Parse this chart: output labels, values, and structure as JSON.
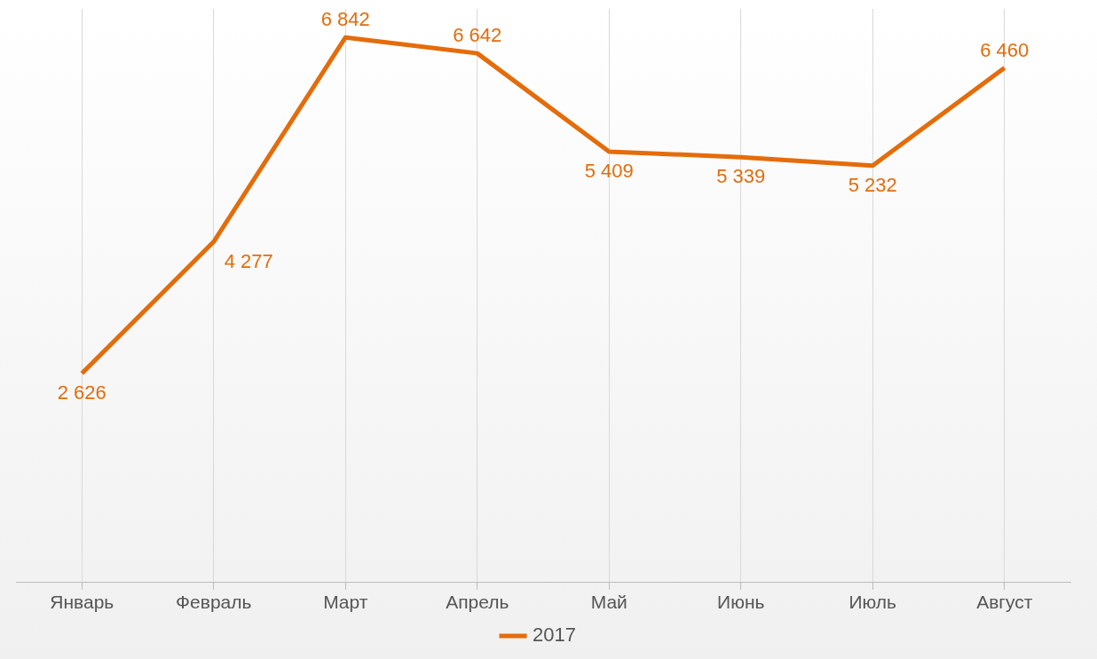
{
  "chart_data": {
    "type": "line",
    "categories": [
      "Январь",
      "Февраль",
      "Март",
      "Апрель",
      "Май",
      "Июнь",
      "Июль",
      "Август"
    ],
    "series": [
      {
        "name": "2017",
        "color": "#e46c0a",
        "values": [
          2626,
          4277,
          6842,
          6642,
          5409,
          5339,
          5232,
          6460
        ],
        "value_labels": [
          "2 626",
          "4 277",
          "6 842",
          "6 642",
          "5 409",
          "5 339",
          "5 232",
          "6 460"
        ]
      }
    ],
    "ylim": [
      0,
      7200
    ],
    "tick_labels": "x",
    "grid": "x",
    "legend": "bottom",
    "marker": "none"
  }
}
